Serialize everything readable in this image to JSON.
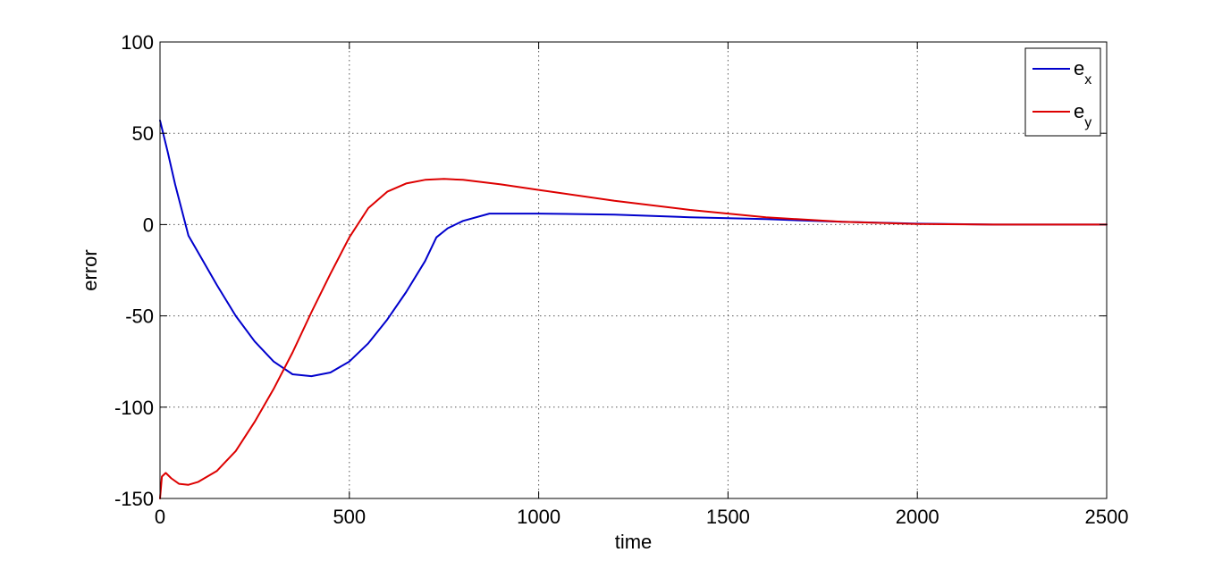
{
  "chart_data": {
    "type": "line",
    "xlabel": "time",
    "ylabel": "error",
    "xlim": [
      0,
      2500
    ],
    "ylim": [
      -150,
      100
    ],
    "xticks": [
      0,
      500,
      1000,
      1500,
      2000,
      2500
    ],
    "yticks": [
      100,
      50,
      0,
      -50,
      -100,
      -150
    ],
    "grid": true,
    "legend_position": "top-right",
    "series": [
      {
        "legend_base": "e",
        "legend_sub": "x",
        "color": "#0000cc",
        "x": [
          0,
          20,
          40,
          60,
          75,
          100,
          150,
          200,
          250,
          300,
          350,
          400,
          450,
          500,
          550,
          600,
          650,
          700,
          730,
          760,
          800,
          870,
          1000,
          1200,
          1400,
          1600,
          1800,
          2000,
          2200,
          2500
        ],
        "y": [
          57,
          40,
          22,
          6,
          -6,
          -15,
          -33,
          -50,
          -64,
          -75,
          -82,
          -83,
          -81,
          -75,
          -65,
          -52,
          -37,
          -20,
          -7,
          -2,
          2,
          6,
          6,
          5.5,
          4,
          3,
          1.5,
          0.5,
          0,
          0
        ]
      },
      {
        "legend_base": "e",
        "legend_sub": "y",
        "color": "#dd0000",
        "x": [
          0,
          5,
          15,
          30,
          50,
          75,
          100,
          150,
          200,
          250,
          300,
          350,
          400,
          450,
          500,
          550,
          600,
          650,
          700,
          750,
          800,
          900,
          1000,
          1200,
          1400,
          1600,
          1800,
          2000,
          2200,
          2500
        ],
        "y": [
          -150,
          -138,
          -136,
          -139,
          -142,
          -142.5,
          -141,
          -135,
          -124,
          -108,
          -90,
          -70,
          -48,
          -27,
          -7,
          9,
          18,
          22.5,
          24.5,
          25,
          24.5,
          22,
          19,
          13,
          8,
          4,
          1.5,
          0.3,
          0,
          0
        ]
      }
    ]
  }
}
